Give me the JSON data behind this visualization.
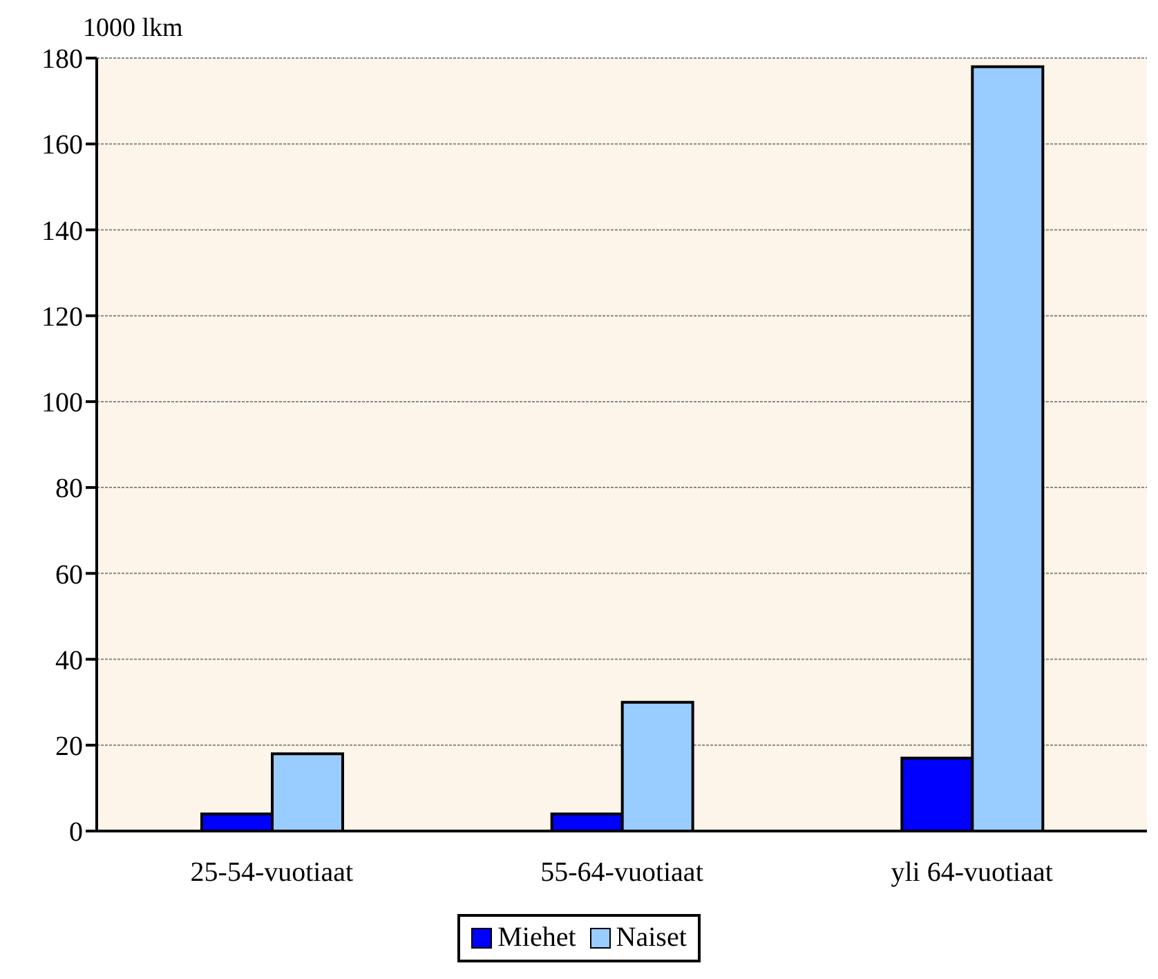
{
  "chart_data": {
    "type": "bar",
    "ylabel": "1000 lkm",
    "categories": [
      "25-54-vuotiaat",
      "55-64-vuotiaat",
      "yli 64-vuotiaat"
    ],
    "series": [
      {
        "name": "Miehet",
        "color": "#0000ff",
        "values": [
          4,
          4,
          17
        ]
      },
      {
        "name": "Naiset",
        "color": "#99ccff",
        "values": [
          18,
          30,
          178
        ]
      }
    ],
    "ylim": [
      0,
      180
    ],
    "yticks": [
      0,
      20,
      40,
      60,
      80,
      100,
      120,
      140,
      160,
      180
    ],
    "grid": "y",
    "legend": "bottom"
  }
}
